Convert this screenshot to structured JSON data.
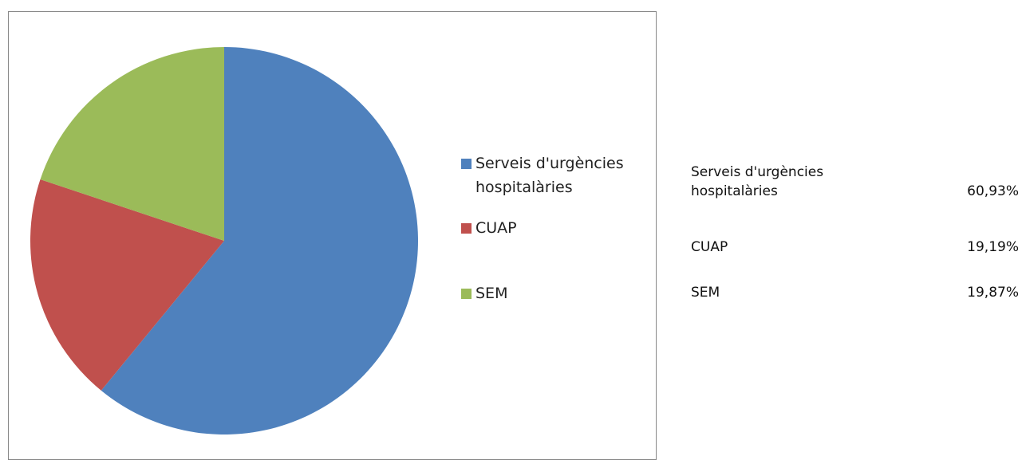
{
  "chart_data": {
    "type": "pie",
    "categories": [
      "Serveis d'urgències hospitalàries",
      "CUAP",
      "SEM"
    ],
    "values": [
      60.93,
      19.19,
      19.87
    ],
    "value_labels": [
      "60,93%",
      "19,19%",
      "19,87%"
    ],
    "colors": [
      "#4f81bd",
      "#c0504d",
      "#9bbb59"
    ],
    "legend": "right"
  }
}
